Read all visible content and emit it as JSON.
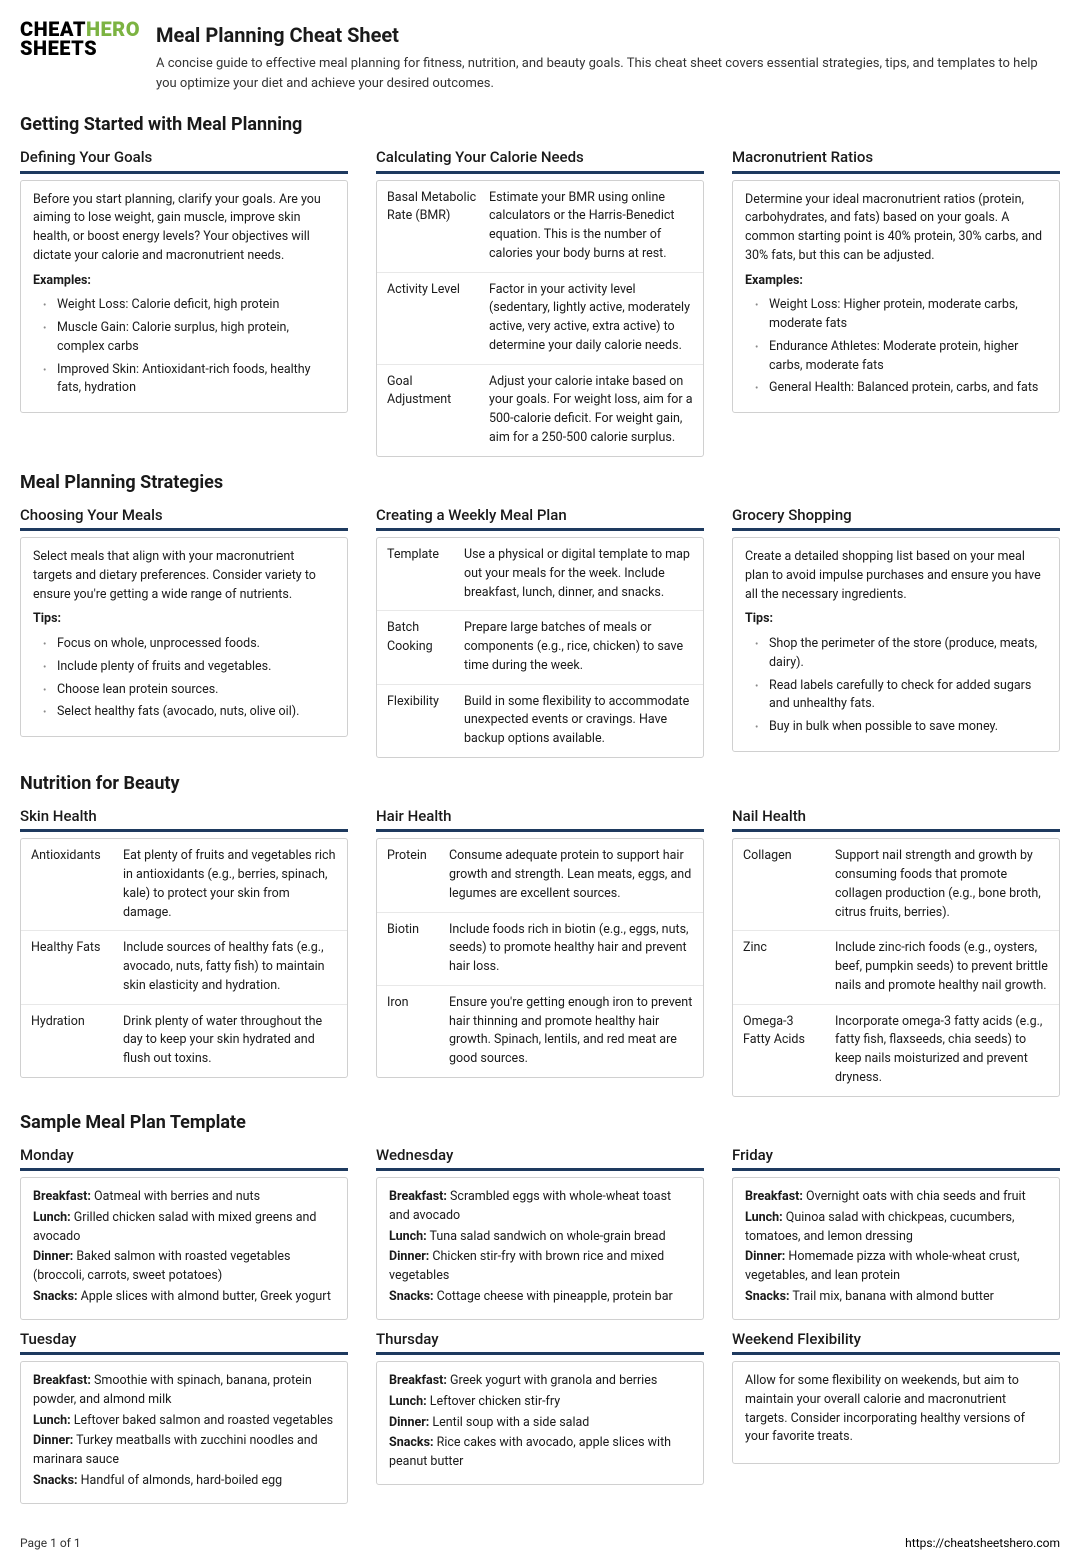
{
  "logo": {
    "line1a": "CHEAT",
    "line1b": "HERO",
    "line2": "SHEETS"
  },
  "header": {
    "title": "Meal Planning Cheat Sheet",
    "subtitle": "A concise guide to effective meal planning for fitness, nutrition, and beauty goals. This cheat sheet covers essential strategies, tips, and templates to help you optimize your diet and achieve your desired outcomes."
  },
  "s1": {
    "heading": "Getting Started with Meal Planning",
    "c1": {
      "title": "Defining Your Goals",
      "text": "Before you start planning, clarify your goals. Are you aiming to lose weight, gain muscle, improve skin health, or boost energy levels? Your objectives will dictate your calorie and macronutrient needs.",
      "examples_label": "Examples:",
      "items": [
        "Weight Loss: Calorie deficit, high protein",
        "Muscle Gain: Calorie surplus, high protein, complex carbs",
        "Improved Skin: Antioxidant-rich foods, healthy fats, hydration"
      ]
    },
    "c2": {
      "title": "Calculating Your Calorie Needs",
      "rows": [
        {
          "k": "Basal Metabolic Rate (BMR)",
          "v": "Estimate your BMR using online calculators or the Harris-Benedict equation. This is the number of calories your body burns at rest."
        },
        {
          "k": "Activity Level",
          "v": "Factor in your activity level (sedentary, lightly active, moderately active, very active, extra active) to determine your daily calorie needs."
        },
        {
          "k": "Goal Adjustment",
          "v": "Adjust your calorie intake based on your goals. For weight loss, aim for a 500-calorie deficit. For weight gain, aim for a 250-500 calorie surplus."
        }
      ]
    },
    "c3": {
      "title": "Macronutrient Ratios",
      "text": "Determine your ideal macronutrient ratios (protein, carbohydrates, and fats) based on your goals. A common starting point is 40% protein, 30% carbs, and 30% fats, but this can be adjusted.",
      "examples_label": "Examples:",
      "items": [
        "Weight Loss: Higher protein, moderate carbs, moderate fats",
        "Endurance Athletes: Moderate protein, higher carbs, moderate fats",
        "General Health: Balanced protein, carbs, and fats"
      ]
    }
  },
  "s2": {
    "heading": "Meal Planning Strategies",
    "c1": {
      "title": "Choosing Your Meals",
      "text": "Select meals that align with your macronutrient targets and dietary preferences. Consider variety to ensure you're getting a wide range of nutrients.",
      "tips_label": "Tips:",
      "items": [
        "Focus on whole, unprocessed foods.",
        "Include plenty of fruits and vegetables.",
        "Choose lean protein sources.",
        "Select healthy fats (avocado, nuts, olive oil)."
      ]
    },
    "c2": {
      "title": "Creating a Weekly Meal Plan",
      "rows": [
        {
          "k": "Template",
          "v": "Use a physical or digital template to map out your meals for the week. Include breakfast, lunch, dinner, and snacks."
        },
        {
          "k": "Batch Cooking",
          "v": "Prepare large batches of meals or components (e.g., rice, chicken) to save time during the week."
        },
        {
          "k": "Flexibility",
          "v": "Build in some flexibility to accommodate unexpected events or cravings. Have backup options available."
        }
      ]
    },
    "c3": {
      "title": "Grocery Shopping",
      "text": "Create a detailed shopping list based on your meal plan to avoid impulse purchases and ensure you have all the necessary ingredients.",
      "tips_label": "Tips:",
      "items": [
        "Shop the perimeter of the store (produce, meats, dairy).",
        "Read labels carefully to check for added sugars and unhealthy fats.",
        "Buy in bulk when possible to save money."
      ]
    }
  },
  "s3": {
    "heading": "Nutrition for Beauty",
    "c1": {
      "title": "Skin Health",
      "rows": [
        {
          "k": "Antioxidants",
          "v": "Eat plenty of fruits and vegetables rich in antioxidants (e.g., berries, spinach, kale) to protect your skin from damage."
        },
        {
          "k": "Healthy Fats",
          "v": "Include sources of healthy fats (e.g., avocado, nuts, fatty fish) to maintain skin elasticity and hydration."
        },
        {
          "k": "Hydration",
          "v": "Drink plenty of water throughout the day to keep your skin hydrated and flush out toxins."
        }
      ]
    },
    "c2": {
      "title": "Hair Health",
      "rows": [
        {
          "k": "Protein",
          "v": "Consume adequate protein to support hair growth and strength. Lean meats, eggs, and legumes are excellent sources."
        },
        {
          "k": "Biotin",
          "v": "Include foods rich in biotin (e.g., eggs, nuts, seeds) to promote healthy hair and prevent hair loss."
        },
        {
          "k": "Iron",
          "v": "Ensure you're getting enough iron to prevent hair thinning and promote healthy hair growth. Spinach, lentils, and red meat are good sources."
        }
      ]
    },
    "c3": {
      "title": "Nail Health",
      "rows": [
        {
          "k": "Collagen",
          "v": "Support nail strength and growth by consuming foods that promote collagen production (e.g., bone broth, citrus fruits, berries)."
        },
        {
          "k": "Zinc",
          "v": "Include zinc-rich foods (e.g., oysters, beef, pumpkin seeds) to prevent brittle nails and promote healthy nail growth."
        },
        {
          "k": "Omega-3 Fatty Acids",
          "v": "Incorporate omega-3 fatty acids (e.g., fatty fish, flaxseeds, chia seeds) to keep nails moisturized and prevent dryness."
        }
      ]
    }
  },
  "s4": {
    "heading": "Sample Meal Plan Template",
    "row1": {
      "c1": {
        "title": "Monday",
        "meals": [
          {
            "label": "Breakfast:",
            "text": " Oatmeal with berries and nuts"
          },
          {
            "label": "Lunch:",
            "text": " Grilled chicken salad with mixed greens and avocado"
          },
          {
            "label": "Dinner:",
            "text": " Baked salmon with roasted vegetables (broccoli, carrots, sweet potatoes)"
          },
          {
            "label": "Snacks:",
            "text": " Apple slices with almond butter, Greek yogurt"
          }
        ]
      },
      "c2": {
        "title": "Wednesday",
        "meals": [
          {
            "label": "Breakfast:",
            "text": " Scrambled eggs with whole-wheat toast and avocado"
          },
          {
            "label": "Lunch:",
            "text": " Tuna salad sandwich on whole-grain bread"
          },
          {
            "label": "Dinner:",
            "text": " Chicken stir-fry with brown rice and mixed vegetables"
          },
          {
            "label": "Snacks:",
            "text": " Cottage cheese with pineapple, protein bar"
          }
        ]
      },
      "c3": {
        "title": "Friday",
        "meals": [
          {
            "label": "Breakfast:",
            "text": " Overnight oats with chia seeds and fruit"
          },
          {
            "label": "Lunch:",
            "text": " Quinoa salad with chickpeas, cucumbers, tomatoes, and lemon dressing"
          },
          {
            "label": "Dinner:",
            "text": " Homemade pizza with whole-wheat crust, vegetables, and lean protein"
          },
          {
            "label": "Snacks:",
            "text": " Trail mix, banana with almond butter"
          }
        ]
      }
    },
    "row2": {
      "c1": {
        "title": "Tuesday",
        "meals": [
          {
            "label": "Breakfast:",
            "text": " Smoothie with spinach, banana, protein powder, and almond milk"
          },
          {
            "label": "Lunch:",
            "text": " Leftover baked salmon and roasted vegetables"
          },
          {
            "label": "Dinner:",
            "text": " Turkey meatballs with zucchini noodles and marinara sauce"
          },
          {
            "label": "Snacks:",
            "text": " Handful of almonds, hard-boiled egg"
          }
        ]
      },
      "c2": {
        "title": "Thursday",
        "meals": [
          {
            "label": "Breakfast:",
            "text": " Greek yogurt with granola and berries"
          },
          {
            "label": "Lunch:",
            "text": " Leftover chicken stir-fry"
          },
          {
            "label": "Dinner:",
            "text": " Lentil soup with a side salad"
          },
          {
            "label": "Snacks:",
            "text": " Rice cakes with avocado, apple slices with peanut butter"
          }
        ]
      },
      "c3": {
        "title": "Weekend Flexibility",
        "text": "Allow for some flexibility on weekends, but aim to maintain your overall calorie and macronutrient targets. Consider incorporating healthy versions of your favorite treats."
      }
    }
  },
  "footer": {
    "page": "Page 1 of 1",
    "url": "https://cheatsheetshero.com"
  }
}
